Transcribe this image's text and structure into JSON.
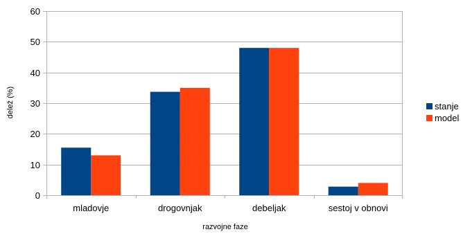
{
  "chart_data": {
    "type": "bar",
    "title": "",
    "xlabel": "razvojne faze",
    "ylabel": "delež (%)",
    "ylim": [
      0,
      60
    ],
    "yticks": [
      0,
      10,
      20,
      30,
      40,
      50,
      60
    ],
    "categories": [
      "mladovje",
      "drogovnjak",
      "debeljak",
      "sestoj v obnovi"
    ],
    "series": [
      {
        "name": "stanje",
        "color": "#004586",
        "values": [
          15.5,
          33.7,
          48.0,
          2.8
        ]
      },
      {
        "name": "model",
        "color": "#ff420e",
        "values": [
          13.0,
          35.0,
          48.0,
          4.0
        ]
      }
    ],
    "grid": true,
    "legend": "right"
  }
}
